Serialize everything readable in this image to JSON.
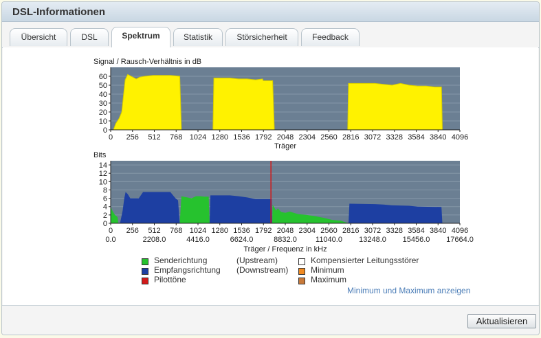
{
  "window": {
    "title": "DSL-Informationen"
  },
  "tabs": [
    {
      "label": "Übersicht",
      "active": false
    },
    {
      "label": "DSL",
      "active": false
    },
    {
      "label": "Spektrum",
      "active": true
    },
    {
      "label": "Statistik",
      "active": false
    },
    {
      "label": "Störsicherheit",
      "active": false
    },
    {
      "label": "Feedback",
      "active": false
    }
  ],
  "colors": {
    "plot_bg": "#6b7f93",
    "snr": "#fff200",
    "upstream": "#26c22e",
    "downstream": "#1d3fa2",
    "pilot": "#d21a1a",
    "minimum": "#f08a22",
    "maximum": "#c87a3a"
  },
  "chart_data": [
    {
      "type": "area",
      "title": "Signal / Rausch-Verhältnis in dB",
      "xlabel": "Träger",
      "ylabel": "",
      "xlim": [
        0,
        4096
      ],
      "ylim": [
        0,
        70
      ],
      "xticks": [
        0,
        256,
        512,
        768,
        1024,
        1280,
        1536,
        1792,
        2048,
        2304,
        2560,
        2816,
        3072,
        3328,
        3584,
        3840,
        4096
      ],
      "yticks": [
        0,
        10,
        20,
        30,
        40,
        50,
        60
      ],
      "series": [
        {
          "x": [
            32,
            60,
            100,
            130,
            150,
            170,
            200,
            260,
            300,
            340,
            400,
            500,
            600,
            700,
            810,
            830
          ],
          "y": [
            0,
            7,
            13,
            20,
            38,
            56,
            62,
            59,
            57,
            59,
            60,
            61,
            61,
            61,
            60,
            0
          ]
        },
        {
          "x": [
            1200,
            1210,
            1300,
            1400,
            1500,
            1600,
            1700,
            1780,
            1790,
            1900,
            1920
          ],
          "y": [
            0,
            58,
            58,
            58,
            57,
            57,
            56,
            57,
            55,
            55,
            0
          ]
        },
        {
          "x": [
            2780,
            2790,
            2900,
            3000,
            3100,
            3200,
            3300,
            3400,
            3500,
            3600,
            3700,
            3800,
            3880,
            3890
          ],
          "y": [
            0,
            52,
            52,
            52,
            52,
            51,
            50,
            52,
            50,
            49,
            49,
            48,
            48,
            0
          ]
        }
      ]
    },
    {
      "type": "area",
      "title": "Bits",
      "xlabel": "Träger / Frequenz in kHz",
      "ylabel": "",
      "xlim": [
        0,
        4096
      ],
      "ylim": [
        0,
        15
      ],
      "xticks": [
        0,
        256,
        512,
        768,
        1024,
        1280,
        1536,
        1792,
        2048,
        2304,
        2560,
        2816,
        3072,
        3328,
        3584,
        3840,
        4096
      ],
      "xticks_secondary": [
        "0.0",
        "2208.0",
        "4416.0",
        "6624.0",
        "8832.0",
        "11040.0",
        "13248.0",
        "15456.0",
        "17664.0"
      ],
      "yticks": [
        0,
        2,
        4,
        6,
        8,
        10,
        12,
        14
      ],
      "series": [
        {
          "name": "Senderichtung",
          "x": [
            0,
            20,
            50,
            80,
            90
          ],
          "y": [
            4,
            3,
            2,
            1.5,
            0
          ]
        },
        {
          "name": "Empfangsrichtung",
          "x": [
            110,
            140,
            160,
            175,
            200,
            230,
            330,
            380,
            700,
            740,
            760,
            790,
            810
          ],
          "y": [
            0,
            3,
            6,
            7.5,
            7,
            6,
            6,
            7.5,
            7.5,
            6.5,
            6,
            5.5,
            0
          ]
        },
        {
          "name": "Senderichtung",
          "x": [
            810,
            830,
            870,
            900,
            950,
            1000,
            1050,
            1100,
            1150,
            1160
          ],
          "y": [
            0,
            6.5,
            6.3,
            6.2,
            6,
            6.5,
            6.5,
            6.4,
            6.4,
            0
          ]
        },
        {
          "name": "Empfangsrichtung",
          "x": [
            1160,
            1170,
            1400,
            1500,
            1600,
            1700,
            1800,
            1890,
            1895
          ],
          "y": [
            0,
            6.7,
            6.7,
            6.5,
            6.2,
            5.8,
            5.8,
            5.8,
            0
          ]
        },
        {
          "name": "Senderichtung",
          "x": [
            1895,
            1900,
            1940,
            1960,
            2000,
            2050,
            2100,
            2200,
            2300,
            2400,
            2500,
            2600,
            2700,
            2790
          ],
          "y": [
            0,
            4.5,
            3,
            3.6,
            2.7,
            2.5,
            2.8,
            2.2,
            2,
            1.7,
            1.3,
            0.8,
            0.6,
            0
          ]
        },
        {
          "name": "Empfangsrichtung",
          "x": [
            2790,
            2800,
            3100,
            3200,
            3300,
            3500,
            3600,
            3880,
            3890
          ],
          "y": [
            0,
            4.7,
            4.6,
            4.5,
            4.3,
            4.2,
            4,
            3.9,
            0
          ]
        }
      ],
      "pilot_tone_carrier": 1880
    }
  ],
  "legend": {
    "upstream_label": "Senderichtung",
    "upstream_note": "(Upstream)",
    "downstream_label": "Empfangsrichtung",
    "downstream_note": "(Downstream)",
    "pilot_label": "Pilottöne",
    "compensated_label": "Kompensierter Leitungsstörer",
    "minimum_label": "Minimum",
    "maximum_label": "Maximum"
  },
  "link": {
    "label": "Minimum und Maximum anzeigen"
  },
  "footer": {
    "refresh_label": "Aktualisieren"
  }
}
